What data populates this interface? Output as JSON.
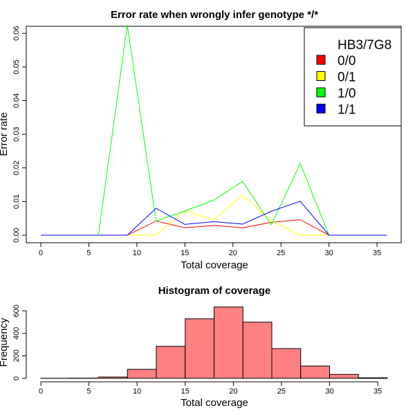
{
  "chart_data": [
    {
      "type": "line",
      "title": "Error rate when wrongly infer genotype */*",
      "xlabel": "Total coverage",
      "ylabel": "Error rate",
      "x": [
        0,
        3,
        6,
        9,
        12,
        15,
        18,
        21,
        24,
        27,
        30,
        33,
        36
      ],
      "xlim": [
        0,
        36
      ],
      "ylim": [
        0,
        0.062
      ],
      "xticks": [
        "0",
        "5",
        "10",
        "15",
        "20",
        "25",
        "30",
        "35"
      ],
      "yticks": [
        "0.00",
        "0.01",
        "0.02",
        "0.03",
        "0.04",
        "0.05",
        "0.06"
      ],
      "legend": {
        "title": "HB3/7G8",
        "position": "top-right"
      },
      "grid": false,
      "series": [
        {
          "name": "0/0",
          "color": "#ff0000",
          "values": [
            0,
            0,
            0,
            0,
            0.0042,
            0.0022,
            0.0029,
            0.0022,
            0.0038,
            0.0046,
            0,
            0,
            0
          ]
        },
        {
          "name": "0/1",
          "color": "#ffff00",
          "values": [
            0,
            0,
            0,
            0,
            0,
            0.0072,
            0.0046,
            0.0118,
            0.0043,
            0,
            0,
            0,
            0
          ]
        },
        {
          "name": "1/0",
          "color": "#00ff00",
          "values": [
            0,
            0,
            0,
            0.0625,
            0.0042,
            0.0072,
            0.0104,
            0.016,
            0.0031,
            0.0213,
            0,
            0,
            0
          ]
        },
        {
          "name": "1/1",
          "color": "#0000ff",
          "values": [
            0,
            0,
            0,
            0,
            0.008,
            0.0032,
            0.004,
            0.0033,
            0.0071,
            0.0101,
            0,
            0,
            0
          ]
        }
      ]
    },
    {
      "type": "bar",
      "title": "Histogram of coverage",
      "xlabel": "Total coverage",
      "ylabel": "Frequency",
      "bin_edges": [
        0,
        3,
        6,
        9,
        12,
        15,
        18,
        21,
        24,
        27,
        30,
        33,
        36
      ],
      "values": [
        1,
        2,
        12,
        80,
        285,
        530,
        635,
        500,
        265,
        110,
        35,
        5
      ],
      "bar_color": "#ff8080",
      "xlim": [
        0,
        36
      ],
      "ylim": [
        0,
        640
      ],
      "xticks": [
        "0",
        "5",
        "10",
        "15",
        "20",
        "25",
        "30",
        "35"
      ],
      "yticks": [
        "0",
        "200",
        "400",
        "600"
      ]
    }
  ]
}
